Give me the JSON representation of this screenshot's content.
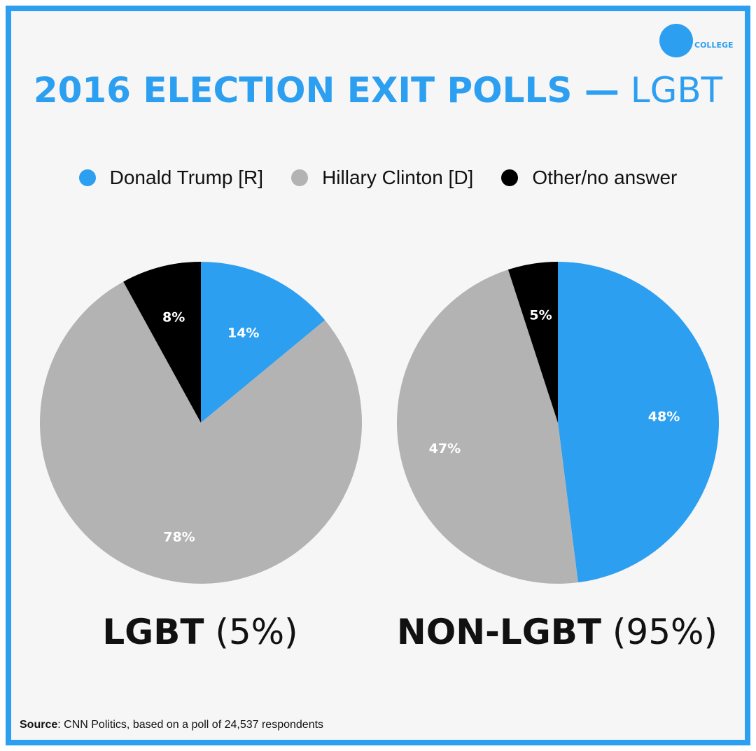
{
  "logo": {
    "text": "COLLEGE",
    "color": "#2d9ff0"
  },
  "title": {
    "bold": "2016 ELECTION EXIT POLLS —",
    "light": "LGBT"
  },
  "legend": [
    {
      "label": "Donald Trump  [R]",
      "color": "#2d9ff0"
    },
    {
      "label": "Hillary Clinton [D]",
      "color": "#b3b3b3"
    },
    {
      "label": "Other/no answer",
      "color": "#000000"
    }
  ],
  "chart_data": [
    {
      "type": "pie",
      "title": "LGBT",
      "share": "(5%)",
      "slices": [
        {
          "label": "Donald Trump [R]",
          "value": 14,
          "display": "14%",
          "color": "#2d9ff0"
        },
        {
          "label": "Hillary Clinton [D]",
          "value": 78,
          "display": "78%",
          "color": "#b3b3b3"
        },
        {
          "label": "Other/no answer",
          "value": 8,
          "display": "8%",
          "color": "#000000"
        }
      ]
    },
    {
      "type": "pie",
      "title": "NON-LGBT",
      "share": "(95%)",
      "slices": [
        {
          "label": "Donald Trump [R]",
          "value": 48,
          "display": "48%",
          "color": "#2d9ff0"
        },
        {
          "label": "Hillary Clinton [D]",
          "value": 47,
          "display": "47%",
          "color": "#b3b3b3"
        },
        {
          "label": "Other/no answer",
          "value": 5,
          "display": "5%",
          "color": "#000000"
        }
      ]
    }
  ],
  "source": {
    "label": "Source",
    "text": ": CNN Politics, based on a poll of 24,537 respondents"
  }
}
